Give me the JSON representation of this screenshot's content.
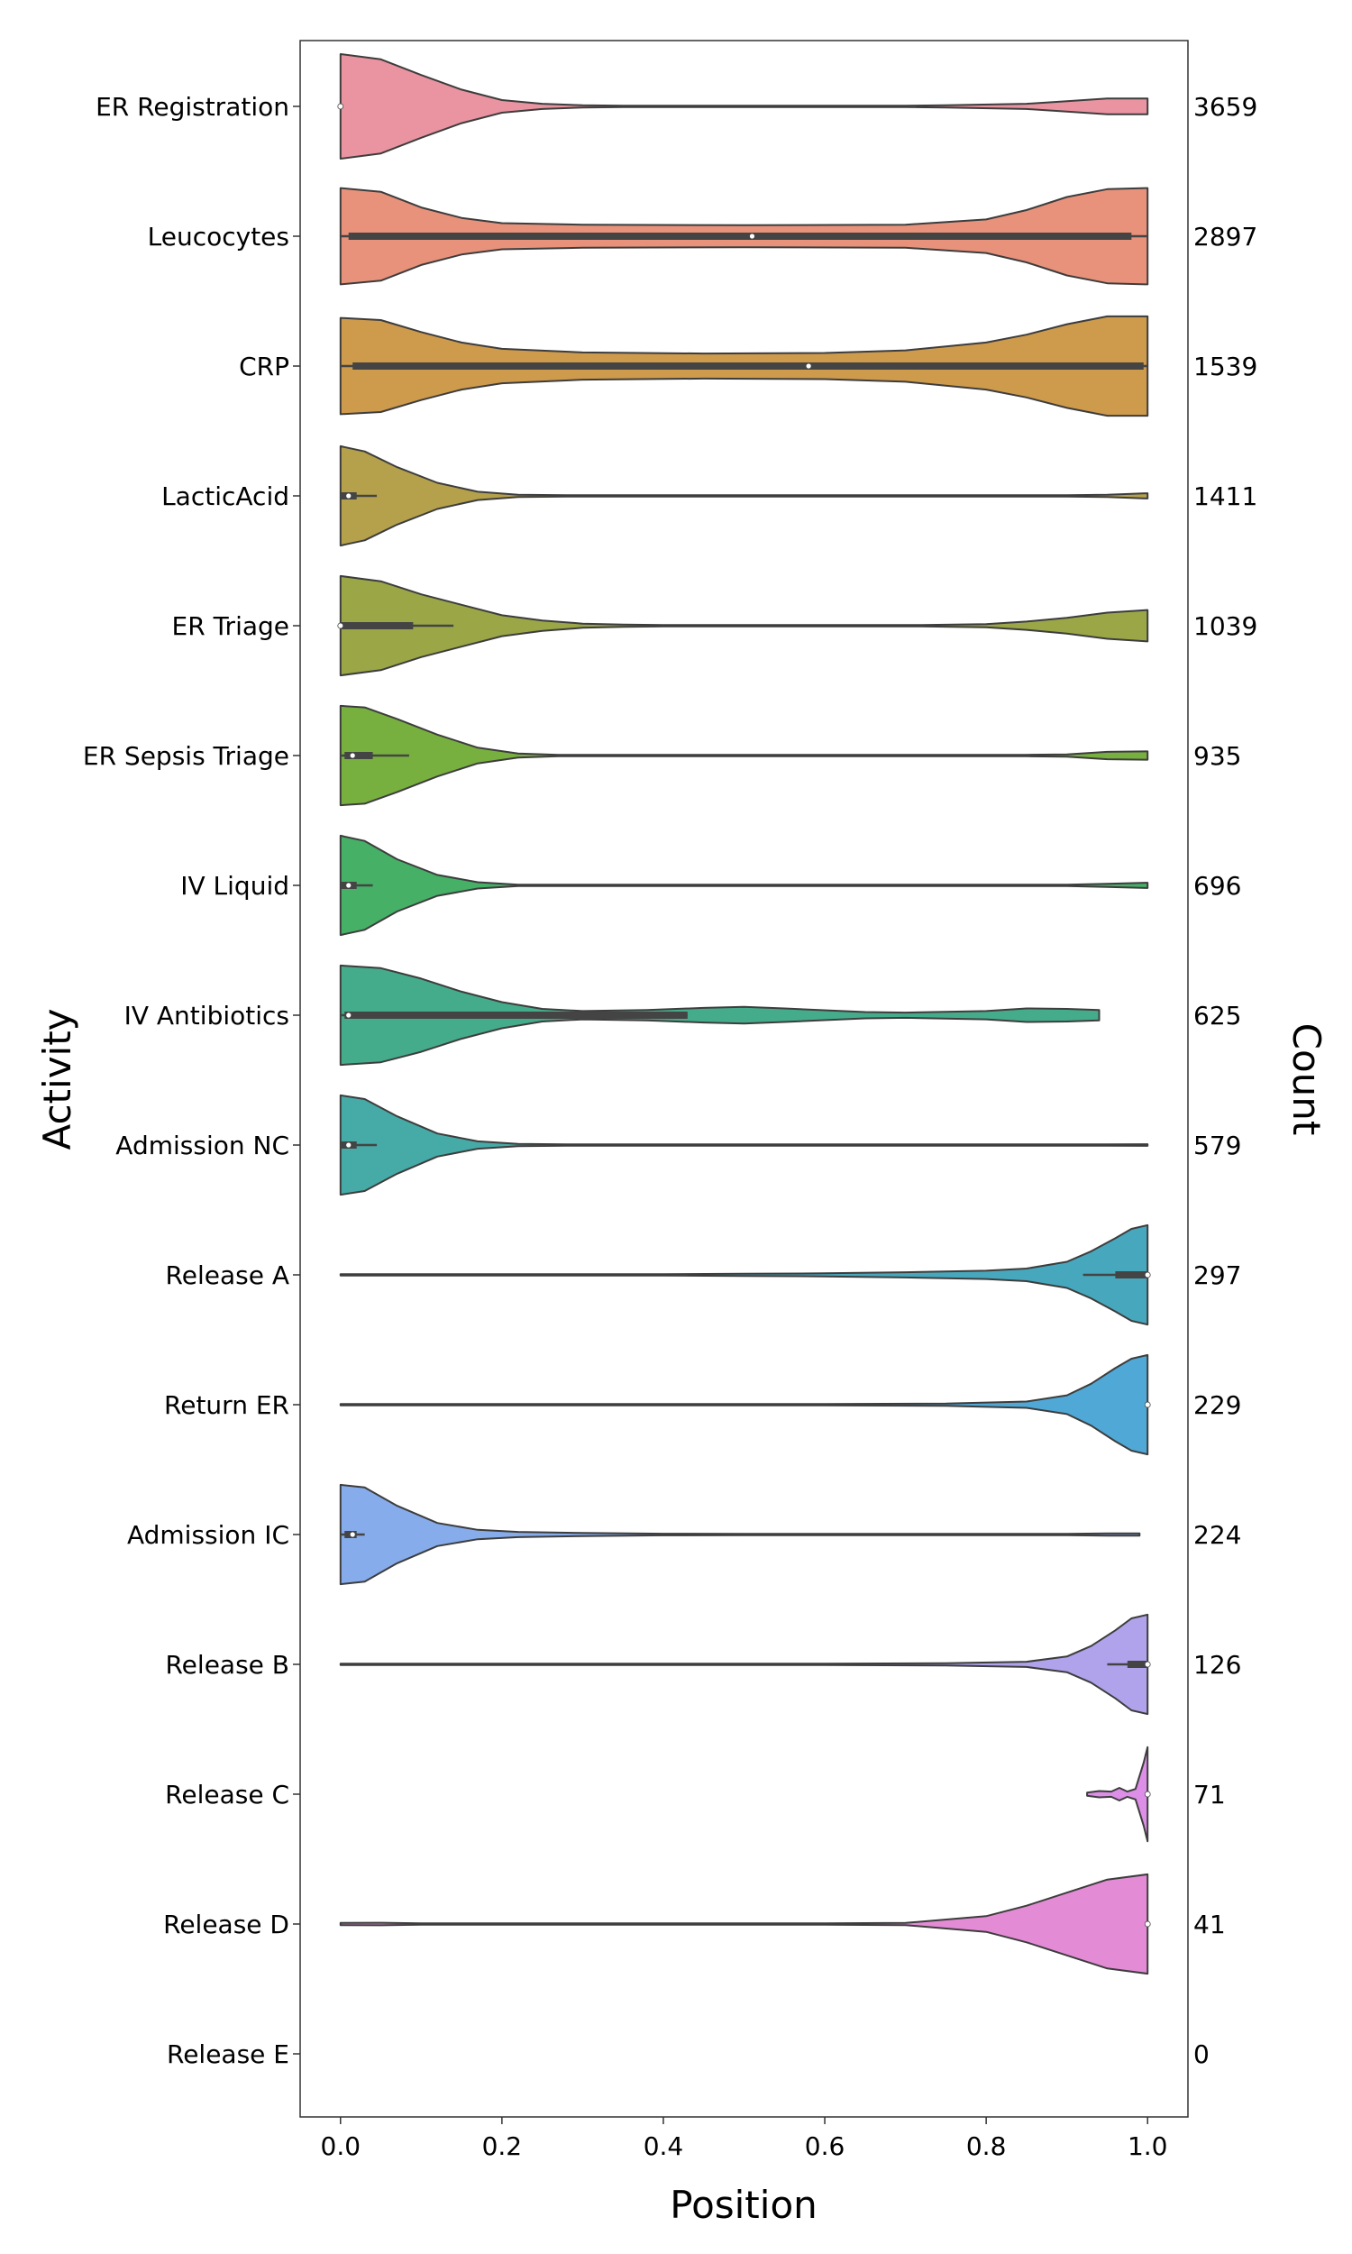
{
  "chart_data": {
    "type": "violin",
    "orientation": "horizontal",
    "xlabel": "Position",
    "ylabel": "Activity",
    "y2label": "Count",
    "xlim": [
      -0.05,
      1.05
    ],
    "xticks": [
      "0.0",
      "0.2",
      "0.4",
      "0.6",
      "0.8",
      "1.0"
    ],
    "xtick_values": [
      0,
      0.2,
      0.4,
      0.6,
      0.8,
      1.0
    ],
    "grid": false,
    "categories": [
      {
        "name": "ER Registration",
        "count": "3659",
        "color": "#ea94a1",
        "min": 0.0,
        "max": 1.0,
        "median": 0.0,
        "q1": 0.0,
        "q3": 0.0,
        "whisker": [
          0.0,
          0.0
        ],
        "profile": [
          [
            0,
            1.0
          ],
          [
            0.05,
            0.9
          ],
          [
            0.1,
            0.6
          ],
          [
            0.15,
            0.32
          ],
          [
            0.2,
            0.12
          ],
          [
            0.25,
            0.05
          ],
          [
            0.3,
            0.02
          ],
          [
            0.35,
            0.01
          ],
          [
            0.45,
            0
          ],
          [
            0.7,
            0
          ],
          [
            0.75,
            0.02
          ],
          [
            0.85,
            0.05
          ],
          [
            0.9,
            0.1
          ],
          [
            0.95,
            0.15
          ],
          [
            1.0,
            0.15
          ]
        ]
      },
      {
        "name": "Leucocytes",
        "count": "2897",
        "color": "#e8927b",
        "min": 0.0,
        "max": 1.0,
        "median": 0.51,
        "q1": 0.01,
        "q3": 0.98,
        "whisker": [
          0.0,
          1.0
        ],
        "profile": [
          [
            0,
            0.92
          ],
          [
            0.05,
            0.85
          ],
          [
            0.1,
            0.55
          ],
          [
            0.15,
            0.35
          ],
          [
            0.2,
            0.25
          ],
          [
            0.3,
            0.22
          ],
          [
            0.5,
            0.21
          ],
          [
            0.7,
            0.22
          ],
          [
            0.8,
            0.32
          ],
          [
            0.85,
            0.5
          ],
          [
            0.9,
            0.75
          ],
          [
            0.95,
            0.9
          ],
          [
            1.0,
            0.92
          ]
        ]
      },
      {
        "name": "CRP",
        "count": "1539",
        "color": "#ce9a4c",
        "min": 0.0,
        "max": 1.0,
        "median": 0.58,
        "q1": 0.015,
        "q3": 0.995,
        "whisker": [
          0.0,
          1.0
        ],
        "profile": [
          [
            0,
            0.92
          ],
          [
            0.05,
            0.88
          ],
          [
            0.1,
            0.65
          ],
          [
            0.15,
            0.45
          ],
          [
            0.2,
            0.33
          ],
          [
            0.3,
            0.26
          ],
          [
            0.45,
            0.24
          ],
          [
            0.6,
            0.25
          ],
          [
            0.7,
            0.3
          ],
          [
            0.8,
            0.45
          ],
          [
            0.85,
            0.6
          ],
          [
            0.9,
            0.8
          ],
          [
            0.95,
            0.95
          ],
          [
            1.0,
            0.95
          ]
        ]
      },
      {
        "name": "LacticAcid",
        "count": "1411",
        "color": "#b5a14b",
        "min": 0.0,
        "max": 1.0,
        "median": 0.01,
        "q1": 0.0,
        "q3": 0.02,
        "whisker": [
          0.0,
          0.045
        ],
        "profile": [
          [
            0,
            0.95
          ],
          [
            0.03,
            0.85
          ],
          [
            0.07,
            0.55
          ],
          [
            0.12,
            0.25
          ],
          [
            0.17,
            0.08
          ],
          [
            0.22,
            0.02
          ],
          [
            0.28,
            0.005
          ],
          [
            0.32,
            0
          ],
          [
            0.9,
            0
          ],
          [
            0.95,
            0.02
          ],
          [
            0.98,
            0.04
          ],
          [
            1.0,
            0.05
          ]
        ]
      },
      {
        "name": "ER Triage",
        "count": "1039",
        "color": "#9ba647",
        "min": 0.0,
        "max": 1.0,
        "median": 0.0,
        "q1": 0.0,
        "q3": 0.09,
        "whisker": [
          0.0,
          0.14
        ],
        "profile": [
          [
            0,
            0.95
          ],
          [
            0.05,
            0.85
          ],
          [
            0.1,
            0.6
          ],
          [
            0.15,
            0.4
          ],
          [
            0.2,
            0.2
          ],
          [
            0.25,
            0.1
          ],
          [
            0.3,
            0.04
          ],
          [
            0.35,
            0.02
          ],
          [
            0.4,
            0
          ],
          [
            0.72,
            0
          ],
          [
            0.8,
            0.03
          ],
          [
            0.85,
            0.08
          ],
          [
            0.9,
            0.15
          ],
          [
            0.95,
            0.25
          ],
          [
            1.0,
            0.3
          ]
        ]
      },
      {
        "name": "ER Sepsis Triage",
        "count": "935",
        "color": "#78b03f",
        "min": 0.0,
        "max": 1.0,
        "median": 0.015,
        "q1": 0.005,
        "q3": 0.04,
        "whisker": [
          0.0,
          0.085
        ],
        "profile": [
          [
            0,
            0.95
          ],
          [
            0.03,
            0.92
          ],
          [
            0.07,
            0.7
          ],
          [
            0.12,
            0.4
          ],
          [
            0.17,
            0.15
          ],
          [
            0.22,
            0.04
          ],
          [
            0.27,
            0.01
          ],
          [
            0.3,
            0
          ],
          [
            0.85,
            0
          ],
          [
            0.9,
            0.02
          ],
          [
            0.95,
            0.07
          ],
          [
            1.0,
            0.08
          ]
        ]
      },
      {
        "name": "IV Liquid",
        "count": "696",
        "color": "#45b066",
        "min": 0.0,
        "max": 1.0,
        "median": 0.01,
        "q1": 0.0,
        "q3": 0.02,
        "whisker": [
          0.0,
          0.04
        ],
        "profile": [
          [
            0,
            0.95
          ],
          [
            0.03,
            0.85
          ],
          [
            0.07,
            0.5
          ],
          [
            0.12,
            0.2
          ],
          [
            0.17,
            0.06
          ],
          [
            0.22,
            0.01
          ],
          [
            0.28,
            0
          ],
          [
            0.9,
            0
          ],
          [
            0.95,
            0.03
          ],
          [
            1.0,
            0.05
          ]
        ]
      },
      {
        "name": "IV Antibiotics",
        "count": "625",
        "color": "#45ac8b",
        "min": 0.0,
        "max": 0.94,
        "median": 0.01,
        "q1": 0.005,
        "q3": 0.43,
        "whisker": [
          0.0,
          0.43
        ],
        "profile": [
          [
            0,
            0.95
          ],
          [
            0.05,
            0.9
          ],
          [
            0.1,
            0.7
          ],
          [
            0.15,
            0.45
          ],
          [
            0.2,
            0.25
          ],
          [
            0.25,
            0.12
          ],
          [
            0.3,
            0.08
          ],
          [
            0.38,
            0.1
          ],
          [
            0.45,
            0.14
          ],
          [
            0.5,
            0.16
          ],
          [
            0.55,
            0.13
          ],
          [
            0.65,
            0.06
          ],
          [
            0.7,
            0.05
          ],
          [
            0.8,
            0.08
          ],
          [
            0.85,
            0.13
          ],
          [
            0.9,
            0.12
          ],
          [
            0.94,
            0.1
          ]
        ]
      },
      {
        "name": "Admission NC",
        "count": "579",
        "color": "#46aaa6",
        "min": 0.0,
        "max": 1.0,
        "median": 0.01,
        "q1": 0.0,
        "q3": 0.02,
        "whisker": [
          0.0,
          0.045
        ],
        "profile": [
          [
            0,
            0.95
          ],
          [
            0.03,
            0.88
          ],
          [
            0.07,
            0.55
          ],
          [
            0.12,
            0.22
          ],
          [
            0.17,
            0.07
          ],
          [
            0.22,
            0.02
          ],
          [
            0.28,
            0.005
          ],
          [
            0.4,
            0
          ],
          [
            0.9,
            0
          ],
          [
            0.95,
            0.01
          ],
          [
            1.0,
            0.015
          ]
        ]
      },
      {
        "name": "Release A",
        "count": "297",
        "color": "#47a8bd",
        "min": 0.0,
        "max": 1.0,
        "median": 1.0,
        "q1": 0.96,
        "q3": 1.0,
        "whisker": [
          0.92,
          1.0
        ],
        "profile": [
          [
            0,
            0.005
          ],
          [
            0.4,
            0.005
          ],
          [
            0.5,
            0.02
          ],
          [
            0.6,
            0.03
          ],
          [
            0.7,
            0.05
          ],
          [
            0.8,
            0.08
          ],
          [
            0.85,
            0.12
          ],
          [
            0.9,
            0.25
          ],
          [
            0.93,
            0.45
          ],
          [
            0.96,
            0.7
          ],
          [
            0.98,
            0.88
          ],
          [
            1.0,
            0.95
          ]
        ]
      },
      {
        "name": "Return ER",
        "count": "229",
        "color": "#50a8d6",
        "min": 0.0,
        "max": 1.0,
        "median": 1.0,
        "q1": 1.0,
        "q3": 1.0,
        "whisker": [
          1.0,
          1.0
        ],
        "profile": [
          [
            0,
            0.005
          ],
          [
            0.6,
            0.005
          ],
          [
            0.75,
            0.02
          ],
          [
            0.85,
            0.06
          ],
          [
            0.9,
            0.18
          ],
          [
            0.93,
            0.4
          ],
          [
            0.96,
            0.7
          ],
          [
            0.98,
            0.88
          ],
          [
            1.0,
            0.95
          ]
        ]
      },
      {
        "name": "Admission IC",
        "count": "224",
        "color": "#87aceb",
        "min": 0.0,
        "max": 0.99,
        "median": 0.015,
        "q1": 0.005,
        "q3": 0.02,
        "whisker": [
          0.0,
          0.03
        ],
        "profile": [
          [
            0,
            0.95
          ],
          [
            0.03,
            0.9
          ],
          [
            0.07,
            0.55
          ],
          [
            0.12,
            0.22
          ],
          [
            0.17,
            0.09
          ],
          [
            0.22,
            0.05
          ],
          [
            0.3,
            0.03
          ],
          [
            0.4,
            0.015
          ],
          [
            0.5,
            0.005
          ],
          [
            0.7,
            0.005
          ],
          [
            0.9,
            0.01
          ],
          [
            0.95,
            0.02
          ],
          [
            0.99,
            0.02
          ]
        ]
      },
      {
        "name": "Release B",
        "count": "126",
        "color": "#b0a3ec",
        "min": 0.0,
        "max": 1.0,
        "median": 1.0,
        "q1": 0.975,
        "q3": 1.0,
        "whisker": [
          0.95,
          1.0
        ],
        "profile": [
          [
            0,
            0.005
          ],
          [
            0.6,
            0.005
          ],
          [
            0.75,
            0.02
          ],
          [
            0.85,
            0.05
          ],
          [
            0.9,
            0.15
          ],
          [
            0.93,
            0.35
          ],
          [
            0.96,
            0.65
          ],
          [
            0.98,
            0.88
          ],
          [
            1.0,
            0.95
          ]
        ]
      },
      {
        "name": "Release C",
        "count": "71",
        "color": "#dd8ee7",
        "min": 0.925,
        "max": 1.0,
        "median": 1.0,
        "q1": 1.0,
        "q3": 1.0,
        "whisker": [
          1.0,
          1.0
        ],
        "profile": [
          [
            0.925,
            0.03
          ],
          [
            0.94,
            0.06
          ],
          [
            0.955,
            0.05
          ],
          [
            0.965,
            0.12
          ],
          [
            0.975,
            0.05
          ],
          [
            0.985,
            0.1
          ],
          [
            0.995,
            0.6
          ],
          [
            1.0,
            0.9
          ]
        ]
      },
      {
        "name": "Release D",
        "count": "41",
        "color": "#e48bd5",
        "min": 0.0,
        "max": 1.0,
        "median": 1.0,
        "q1": 1.0,
        "q3": 1.0,
        "whisker": [
          1.0,
          1.0
        ],
        "profile": [
          [
            0,
            0.02
          ],
          [
            0.05,
            0.025
          ],
          [
            0.1,
            0.01
          ],
          [
            0.2,
            0.005
          ],
          [
            0.6,
            0.005
          ],
          [
            0.7,
            0.02
          ],
          [
            0.8,
            0.15
          ],
          [
            0.85,
            0.35
          ],
          [
            0.9,
            0.6
          ],
          [
            0.95,
            0.85
          ],
          [
            1.0,
            0.95
          ]
        ]
      },
      {
        "name": "Release E",
        "count": "0",
        "color": "#e48bb8",
        "empty": true
      }
    ]
  }
}
